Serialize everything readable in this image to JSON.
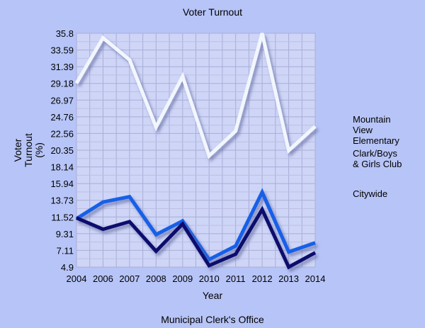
{
  "chart_data": {
    "type": "line",
    "title": "Voter Turnout",
    "caption": "Municipal Clerk's Office",
    "xlabel": "Year",
    "ylabel": "Voter Turnout (%)",
    "x": [
      "2004",
      "2006",
      "2007",
      "2008",
      "2009",
      "2010",
      "2011",
      "2012",
      "2013",
      "2014"
    ],
    "yticks": [
      "4.9",
      "7.11",
      "9.31",
      "11.52",
      "13.73",
      "15.94",
      "18.14",
      "20.35",
      "22.56",
      "24.76",
      "26.97",
      "29.18",
      "31.39",
      "33.59",
      "35.8"
    ],
    "ylim": [
      4.9,
      35.8
    ],
    "grid": true,
    "legend_position": "right",
    "series": [
      {
        "name": "Mountain View Elementary",
        "color": "#1560e8",
        "values": [
          11.3,
          13.5,
          14.2,
          9.2,
          11.0,
          5.9,
          7.7,
          14.8,
          6.9,
          8.1
        ]
      },
      {
        "name": "Clark/Boys & Girls Club",
        "color": "#0b0f6e",
        "values": [
          11.4,
          9.9,
          10.9,
          7.0,
          10.6,
          5.1,
          6.6,
          12.5,
          4.9,
          6.8
        ]
      },
      {
        "name": "Citywide",
        "color": "#f2f6ff",
        "values": [
          29.2,
          35.2,
          32.3,
          23.4,
          30.1,
          19.6,
          22.9,
          35.8,
          20.3,
          23.5
        ]
      }
    ]
  }
}
